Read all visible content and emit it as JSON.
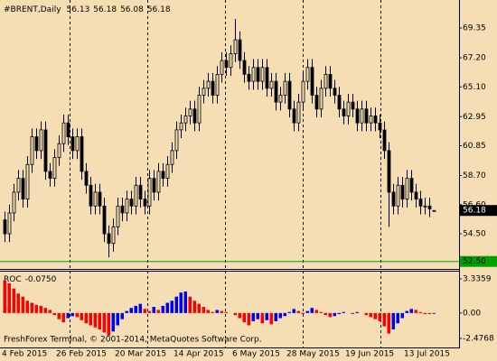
{
  "chart_data": [
    {
      "type": "candlestick",
      "title": "#BRENT,Daily",
      "categories": [
        "4 Feb 2015",
        null,
        null,
        null,
        null,
        null,
        null,
        null,
        null,
        null,
        null,
        null,
        "26 Feb 2015",
        null,
        null,
        null,
        null,
        null,
        null,
        null,
        null,
        null,
        null,
        null,
        null,
        "20 Mar 2015",
        null,
        null,
        null,
        null,
        null,
        null,
        null,
        null,
        null,
        null,
        null,
        null,
        "14 Apr 2015",
        null,
        null,
        null,
        null,
        null,
        null,
        null,
        null,
        null,
        null,
        null,
        null,
        "6 May 2015",
        null,
        null,
        null,
        null,
        null,
        null,
        null,
        null,
        null,
        null,
        null,
        "28 May 2015",
        null,
        null,
        null,
        null,
        null,
        null,
        null,
        null,
        null,
        null,
        null,
        null,
        "19 Jun 2015",
        null,
        null,
        null,
        null,
        null,
        null,
        null,
        null,
        null,
        null,
        null,
        null,
        "13 Jul 2015",
        null,
        null,
        null,
        null,
        null,
        null
      ],
      "open": [
        55.5,
        54.5,
        56.0,
        57.5,
        58.5,
        57.0,
        59.5,
        61.5,
        60.5,
        62.0,
        59.0,
        58.5,
        60.0,
        61.0,
        62.5,
        61.5,
        60.5,
        61.5,
        59.0,
        58.0,
        56.5,
        57.5,
        56.5,
        54.5,
        53.8,
        55.0,
        56.5,
        56.0,
        57.0,
        56.5,
        58.0,
        57.0,
        56.5,
        58.5,
        57.5,
        59.0,
        58.5,
        59.5,
        60.5,
        62.0,
        62.5,
        63.0,
        63.5,
        62.5,
        64.5,
        65.0,
        65.5,
        64.5,
        66.0,
        67.0,
        66.5,
        67.5,
        68.5,
        67.0,
        66.0,
        65.5,
        66.5,
        65.5,
        66.5,
        65.0,
        65.5,
        64.0,
        64.5,
        65.5,
        63.5,
        62.5,
        64.0,
        65.5,
        66.5,
        64.5,
        63.5,
        65.0,
        66.0,
        65.0,
        64.5,
        63.5,
        63.0,
        64.0,
        63.5,
        62.5,
        63.5,
        62.5,
        63.0,
        62.5,
        62.0,
        60.5,
        57.5,
        56.5,
        58.0,
        57.0,
        58.5,
        57.5,
        57.0,
        56.5,
        56.5,
        56.13
      ],
      "high": [
        56.1,
        56.6,
        58.1,
        59.1,
        59.1,
        60.1,
        62.1,
        62.1,
        62.6,
        62.6,
        59.6,
        60.6,
        61.6,
        63.1,
        63.1,
        62.1,
        62.1,
        62.1,
        59.6,
        58.6,
        58.1,
        58.1,
        57.1,
        55.1,
        55.6,
        57.1,
        57.1,
        57.6,
        57.6,
        58.6,
        58.6,
        57.6,
        59.1,
        59.1,
        59.6,
        59.6,
        60.1,
        61.1,
        62.6,
        63.1,
        63.6,
        64.1,
        64.1,
        65.1,
        65.6,
        66.1,
        66.1,
        66.6,
        67.6,
        67.6,
        68.1,
        70.0,
        69.1,
        67.6,
        66.6,
        67.1,
        67.1,
        67.1,
        67.1,
        66.1,
        66.1,
        65.1,
        66.1,
        66.1,
        64.1,
        64.6,
        66.1,
        67.1,
        67.1,
        65.1,
        65.6,
        66.6,
        66.6,
        65.6,
        65.1,
        64.1,
        64.6,
        64.6,
        64.1,
        64.1,
        64.1,
        63.6,
        63.6,
        63.1,
        62.6,
        61.1,
        58.1,
        58.6,
        58.6,
        59.1,
        59.1,
        58.1,
        57.6,
        57.1,
        57.1,
        56.18
      ],
      "low": [
        53.9,
        53.9,
        55.4,
        56.9,
        56.4,
        56.4,
        58.9,
        59.9,
        59.9,
        58.4,
        57.9,
        57.9,
        59.4,
        60.4,
        60.9,
        59.9,
        59.9,
        58.4,
        57.4,
        55.9,
        55.9,
        55.9,
        53.9,
        52.8,
        53.2,
        54.4,
        55.4,
        55.4,
        55.9,
        55.9,
        56.4,
        55.9,
        55.9,
        56.9,
        56.9,
        57.9,
        57.9,
        58.9,
        59.9,
        61.4,
        61.9,
        62.4,
        61.9,
        61.9,
        63.9,
        64.4,
        63.9,
        63.9,
        65.4,
        65.9,
        65.9,
        66.9,
        66.4,
        65.4,
        64.9,
        64.9,
        64.9,
        64.9,
        64.4,
        64.4,
        63.4,
        63.4,
        63.9,
        62.9,
        61.9,
        61.9,
        63.4,
        64.9,
        63.9,
        62.9,
        62.9,
        64.4,
        64.4,
        63.9,
        62.9,
        62.4,
        62.4,
        62.9,
        61.9,
        61.9,
        61.9,
        61.9,
        61.9,
        61.4,
        59.9,
        55.0,
        55.9,
        55.9,
        56.4,
        56.4,
        56.9,
        56.4,
        55.9,
        55.9,
        55.7,
        56.08
      ],
      "close": [
        54.5,
        56.0,
        57.5,
        58.5,
        57.0,
        59.5,
        61.5,
        60.5,
        62.0,
        59.0,
        58.5,
        60.0,
        61.0,
        62.5,
        61.5,
        60.5,
        61.5,
        59.0,
        58.0,
        56.5,
        57.5,
        56.5,
        54.5,
        53.8,
        55.0,
        56.5,
        56.0,
        57.0,
        56.5,
        58.0,
        57.0,
        56.5,
        58.5,
        57.5,
        59.0,
        58.5,
        59.5,
        60.5,
        62.0,
        62.5,
        63.0,
        63.5,
        62.5,
        64.5,
        65.0,
        65.5,
        64.5,
        66.0,
        67.0,
        66.5,
        67.5,
        68.5,
        67.0,
        66.0,
        65.5,
        66.5,
        65.5,
        66.5,
        65.0,
        65.5,
        64.0,
        64.5,
        65.5,
        63.5,
        62.5,
        64.0,
        65.5,
        66.5,
        64.5,
        63.5,
        65.0,
        66.0,
        65.0,
        64.5,
        63.5,
        63.0,
        64.0,
        63.5,
        62.5,
        63.5,
        62.5,
        63.0,
        62.5,
        62.0,
        60.5,
        57.5,
        56.5,
        58.0,
        57.0,
        58.5,
        57.5,
        57.0,
        56.5,
        56.5,
        56.3,
        56.18
      ],
      "color": "#000000",
      "ylim": [
        51.96,
        71.37
      ],
      "yticks": [
        69.35,
        {
          "value": 67.2,
          "label": "67.20"
        },
        {
          "value": 65.1,
          "label": "65.10"
        },
        62.95,
        60.85,
        {
          "value": 58.7,
          "label": "58.70"
        },
        {
          "value": 56.6,
          "label": "56.60"
        },
        {
          "value": 54.5,
          "label": "54.50"
        }
      ],
      "bid": {
        "value": 56.18,
        "label": "56.18"
      },
      "levels": [
        {
          "value": 52.5,
          "label": "52.50",
          "color": "#00a000"
        }
      ]
    },
    {
      "type": "bar",
      "title": "ROC",
      "current_label": "-0.0750",
      "values": [
        3.2,
        2.9,
        2.4,
        1.9,
        1.6,
        1.2,
        1.0,
        0.8,
        0.7,
        0.5,
        0.3,
        -0.2,
        -0.6,
        -0.9,
        -0.5,
        -0.3,
        -0.4,
        -0.7,
        -1.0,
        -1.2,
        -1.4,
        -1.6,
        -1.9,
        -2.2,
        -1.8,
        -1.2,
        -0.6,
        0.2,
        0.5,
        0.7,
        0.9,
        0.4,
        0.2,
        0.6,
        0.3,
        0.7,
        1.0,
        1.2,
        1.6,
        2.0,
        2.1,
        1.6,
        1.2,
        0.9,
        0.6,
        0.3,
        0.1,
        0.3,
        0.2,
        0.1,
        0.0,
        -0.2,
        -0.5,
        -0.9,
        -1.2,
        -0.8,
        -0.6,
        -1.0,
        -0.7,
        -1.1,
        -0.8,
        -0.5,
        -0.3,
        0.1,
        0.4,
        0.2,
        -0.1,
        0.2,
        0.5,
        0.3,
        0.1,
        -0.2,
        -0.4,
        -0.3,
        -0.1,
        0.1,
        0.0,
        -0.1,
        0.1,
        0.0,
        -0.2,
        -0.4,
        -0.6,
        -0.8,
        -1.3,
        -2.0,
        -1.6,
        -1.0,
        -0.5,
        0.2,
        0.4,
        0.3,
        0.1,
        -0.1,
        -0.1,
        -0.075
      ],
      "rising_color": "#0000ff",
      "falling_color": "#ff0000",
      "ylim": [
        -3.36,
        4.04
      ],
      "yticks": [
        3.3359,
        {
          "value": 0,
          "label": "0.00"
        },
        -2.4768
      ]
    },
    {
      "type": "note",
      "text": "FreshForex Terminal, © 2001-2014, MetaQuotes Software Corp."
    }
  ]
}
